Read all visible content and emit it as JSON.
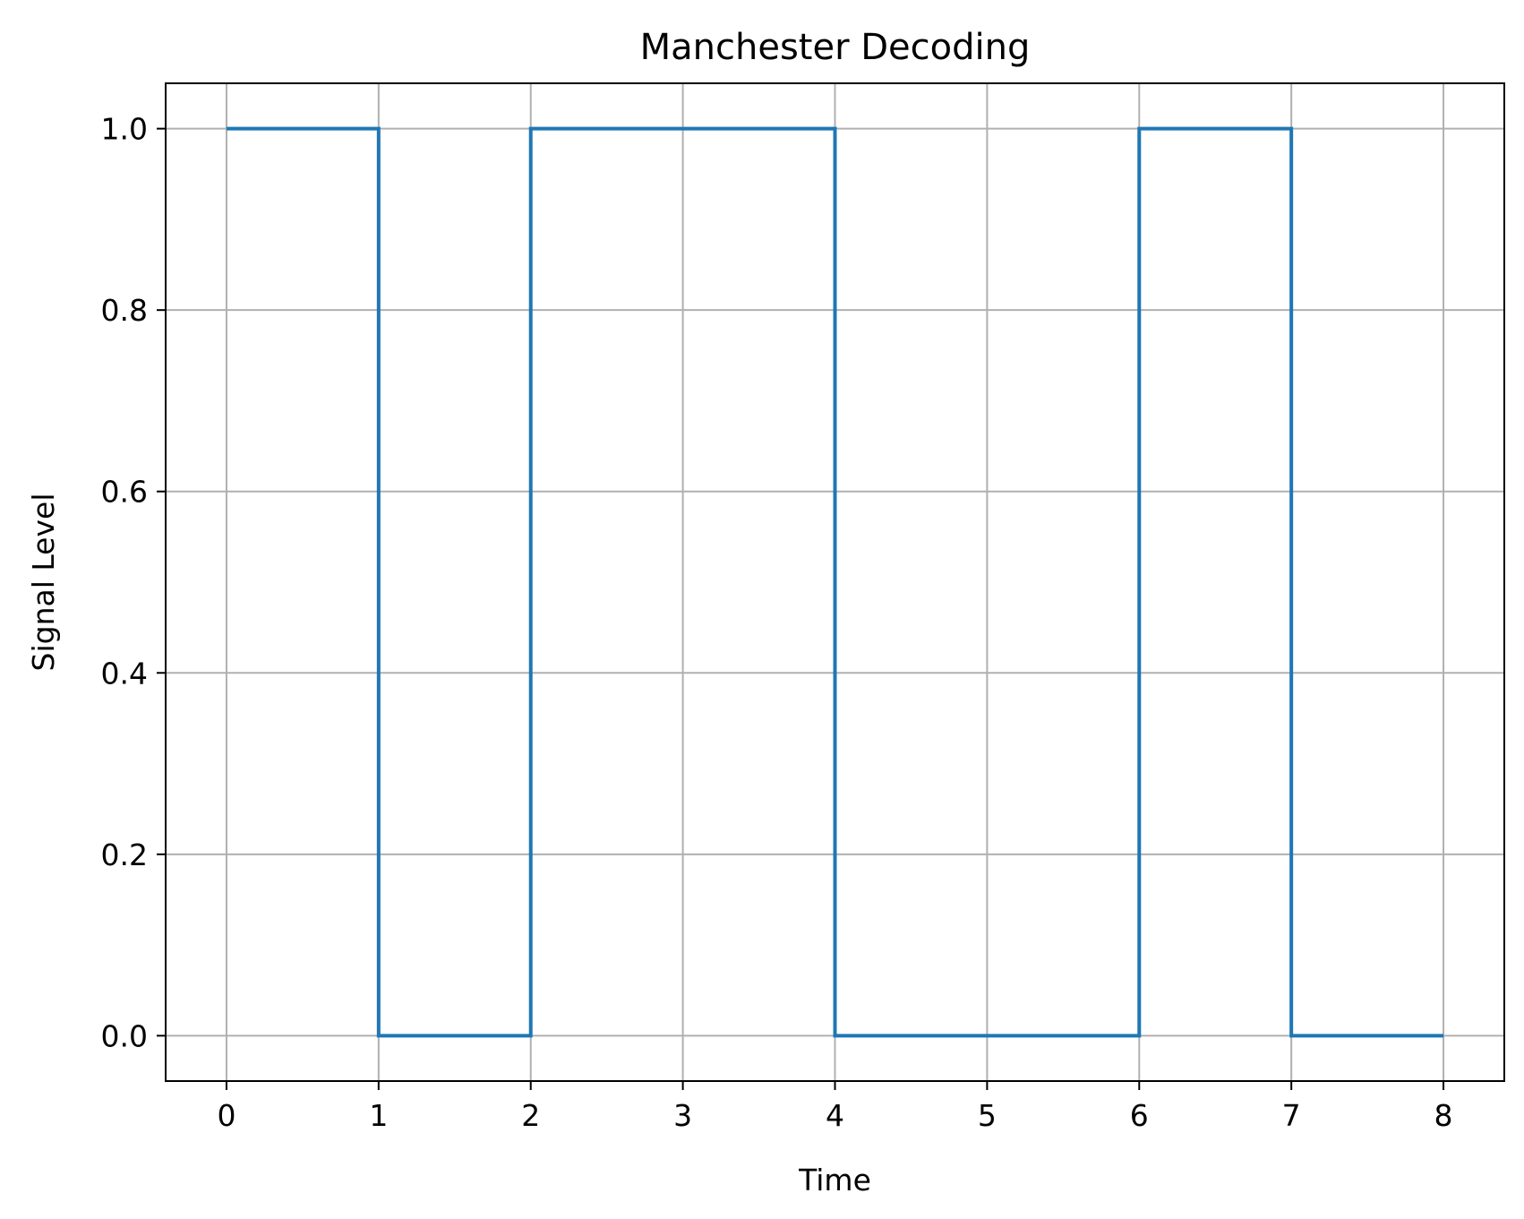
{
  "chart_data": {
    "type": "line",
    "step": "post",
    "title": "Manchester Decoding",
    "xlabel": "Time",
    "ylabel": "Signal Level",
    "series": [
      {
        "x": [
          0,
          1,
          2,
          3,
          4,
          5,
          6,
          7,
          8
        ],
        "y": [
          1,
          0,
          1,
          1,
          0,
          0,
          1,
          0,
          0
        ],
        "color": "#1f77b4"
      }
    ],
    "xlim": [
      -0.4,
      8.4
    ],
    "ylim": [
      -0.05,
      1.05
    ],
    "xticks": [
      0,
      1,
      2,
      3,
      4,
      5,
      6,
      7,
      8
    ],
    "xtick_labels": [
      "0",
      "1",
      "2",
      "3",
      "4",
      "5",
      "6",
      "7",
      "8"
    ],
    "yticks": [
      0.0,
      0.2,
      0.4,
      0.6,
      0.8,
      1.0
    ],
    "ytick_labels": [
      "0.0",
      "0.2",
      "0.4",
      "0.6",
      "0.8",
      "1.0"
    ],
    "grid": true,
    "grid_color": "#b0b0b0",
    "legend": "none"
  }
}
